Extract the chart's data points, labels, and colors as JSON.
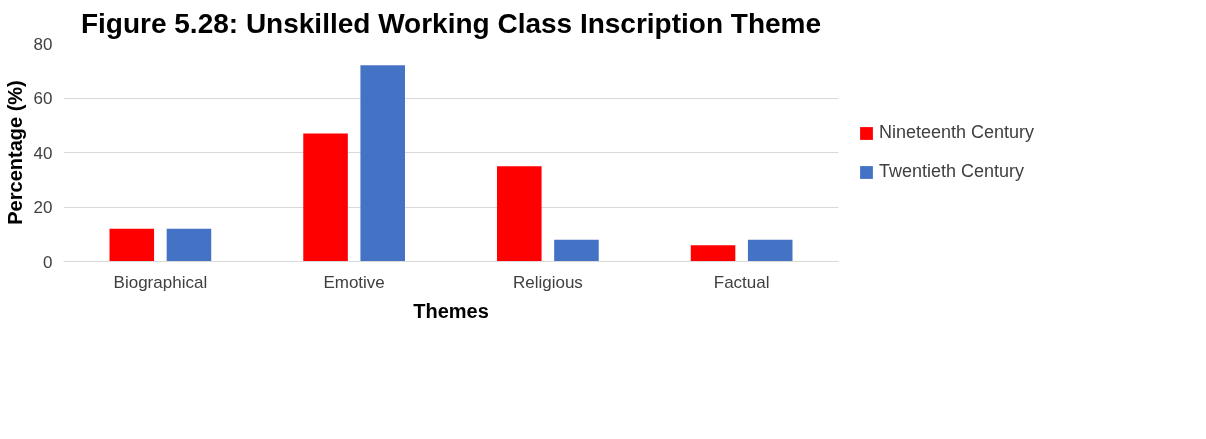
{
  "chart_data": {
    "type": "bar",
    "title": "Figure 5.28: Unskilled Working Class Inscription Theme",
    "xlabel": "Themes",
    "ylabel": "Percentage (%)",
    "categories": [
      "Biographical",
      "Emotive",
      "Religious",
      "Factual"
    ],
    "series": [
      {
        "name": "Nineteenth Century",
        "color": "#ff0000",
        "values": [
          12,
          47,
          35,
          6
        ]
      },
      {
        "name": "Twentieth Century",
        "color": "#4472c4",
        "values": [
          12,
          72,
          8,
          8
        ]
      }
    ],
    "ylim": [
      0,
      80
    ],
    "yticks": [
      0,
      20,
      40,
      60,
      80
    ],
    "grid": "y",
    "legend": "right"
  }
}
